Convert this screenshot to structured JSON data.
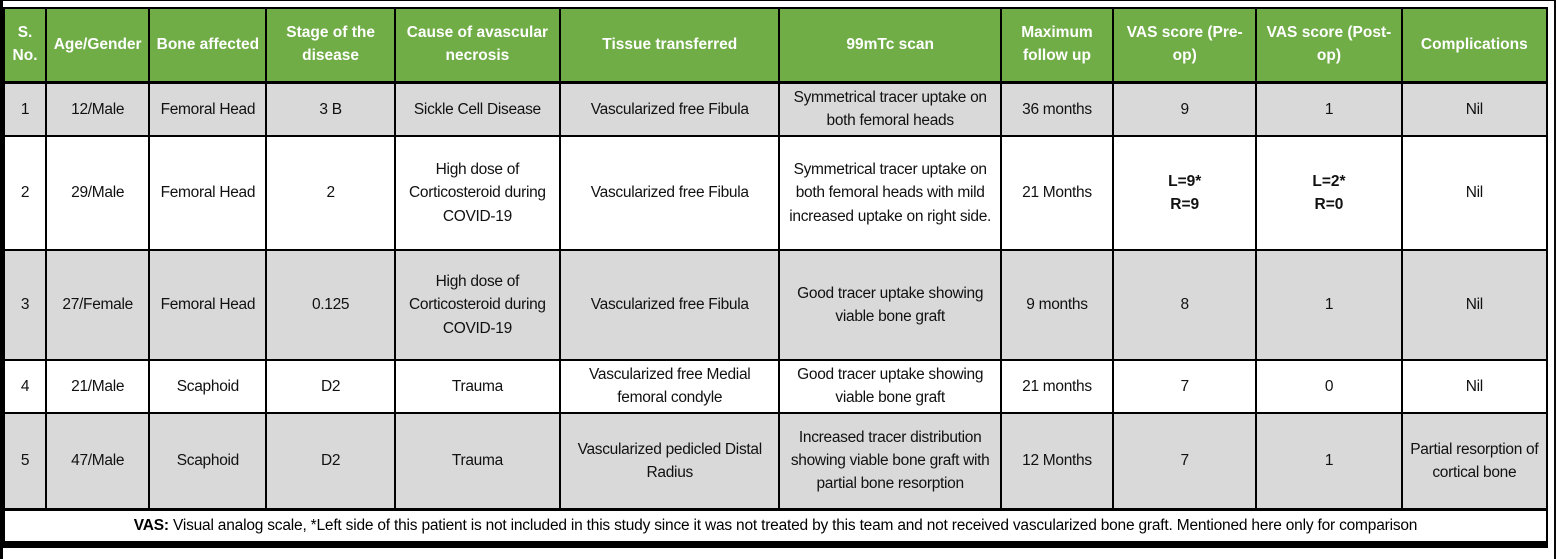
{
  "table": {
    "columns": [
      "S. No.",
      "Age/Gender",
      "Bone affected",
      "Stage of the disease",
      "Cause of avascular necrosis",
      "Tissue transferred",
      "99mTc scan",
      "Maximum follow up",
      "VAS score (Pre-op)",
      "VAS score (Post-op)",
      "Complications"
    ],
    "rows": [
      [
        "1",
        "12/Male",
        "Femoral Head",
        "3 B",
        "Sickle Cell Disease",
        "Vascularized free Fibula",
        "Symmetrical tracer uptake on both femoral heads",
        "36 months",
        "9",
        "1",
        "Nil"
      ],
      [
        "2",
        "29/Male",
        "Femoral Head",
        "2",
        "High dose of Corticosteroid during COVID-19",
        "Vascularized free Fibula",
        "Symmetrical tracer uptake on both femoral heads with mild increased uptake on right side.",
        "21 Months",
        "L=9*\nR=9",
        "L=2*\nR=0",
        "Nil"
      ],
      [
        "3",
        "27/Female",
        "Femoral Head",
        "0.125",
        "High dose of Corticosteroid during COVID-19",
        "Vascularized free Fibula",
        "Good tracer uptake showing viable bone graft",
        "9 months",
        "8",
        "1",
        "Nil"
      ],
      [
        "4",
        "21/Male",
        "Scaphoid",
        "D2",
        "Trauma",
        "Vascularized free Medial femoral condyle",
        "Good tracer uptake showing viable bone graft",
        "21 months",
        "7",
        "0",
        "Nil"
      ],
      [
        "5",
        "47/Male",
        "Scaphoid",
        "D2",
        "Trauma",
        "Vascularized pedicled Distal Radius",
        "Increased tracer distribution showing viable bone graft with partial bone resorption",
        "12 Months",
        "7",
        "1",
        "Partial resorption of cortical bone"
      ]
    ],
    "bold_cells": [
      [
        1,
        8
      ],
      [
        1,
        9
      ]
    ],
    "footnote": {
      "prefix": "VAS:",
      "text": " Visual analog scale, *Left side of this patient is not included in this study since it was not treated by this team and not received vascularized bone graft. Mentioned here only for comparison"
    }
  },
  "colors": {
    "header_green": "#70AD47",
    "row_gray": "#D9D9D9",
    "row_white": "#FFFFFF",
    "border_black": "#000000",
    "header_text": "#FFFFFF"
  }
}
